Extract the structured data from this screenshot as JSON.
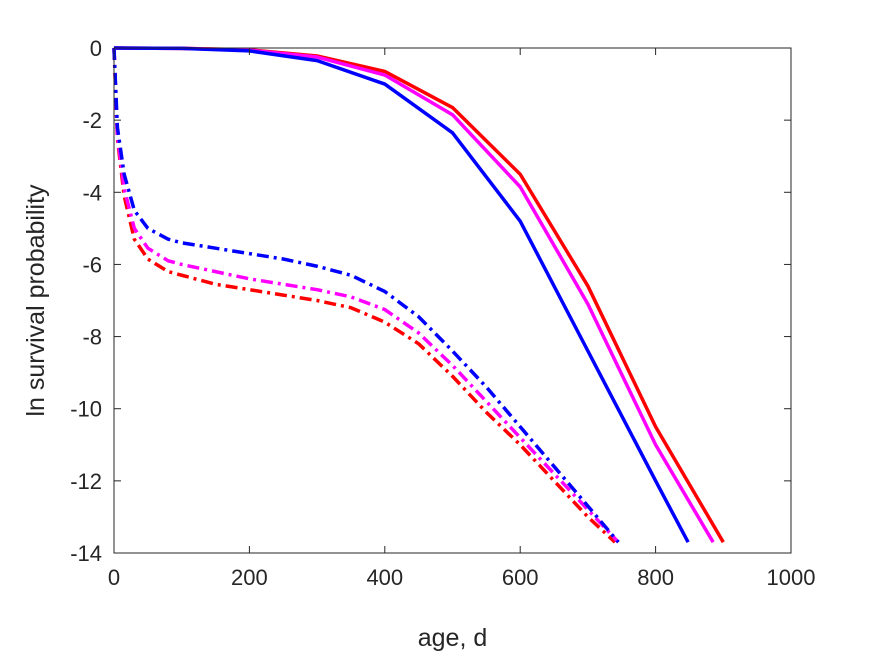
{
  "chart_data": {
    "type": "line",
    "xlabel": "age, d",
    "ylabel": "ln survival probability",
    "xlim": [
      0,
      1000
    ],
    "ylim": [
      -14,
      0
    ],
    "xticks": [
      0,
      200,
      400,
      600,
      800,
      1000
    ],
    "yticks": [
      0,
      -2,
      -4,
      -6,
      -8,
      -10,
      -12,
      -14
    ],
    "xtick_labels": [
      "0",
      "200",
      "400",
      "600",
      "800",
      "1000"
    ],
    "ytick_labels": [
      "0",
      "-2",
      "-4",
      "-6",
      "-8",
      "-10",
      "-12",
      "-14"
    ],
    "grid": false,
    "legend": "none",
    "series": [
      {
        "color": "#ff0000",
        "linestyle": "solid",
        "x": [
          0,
          100,
          200,
          300,
          400,
          500,
          600,
          700,
          800,
          900
        ],
        "y": [
          0,
          -0.01,
          -0.05,
          -0.22,
          -0.65,
          -1.65,
          -3.5,
          -6.6,
          -10.5,
          -13.7
        ]
      },
      {
        "color": "#ff00ff",
        "linestyle": "solid",
        "x": [
          0,
          100,
          200,
          300,
          400,
          500,
          600,
          700,
          800,
          885
        ],
        "y": [
          0,
          -0.01,
          -0.06,
          -0.25,
          -0.75,
          -1.85,
          -3.85,
          -7.1,
          -11.0,
          -13.7
        ]
      },
      {
        "color": "#0000ff",
        "linestyle": "solid",
        "x": [
          0,
          100,
          200,
          300,
          400,
          500,
          600,
          700,
          800,
          848
        ],
        "y": [
          0,
          -0.01,
          -0.08,
          -0.35,
          -1.0,
          -2.35,
          -4.8,
          -8.4,
          -12.0,
          -13.7
        ]
      },
      {
        "color": "#ff0000",
        "linestyle": "dashdot",
        "x": [
          0,
          5,
          15,
          30,
          50,
          80,
          100,
          150,
          200,
          250,
          300,
          350,
          400,
          450,
          500,
          550,
          600,
          650,
          700,
          740
        ],
        "y": [
          0,
          -2.5,
          -4.1,
          -5.3,
          -5.85,
          -6.2,
          -6.3,
          -6.55,
          -6.7,
          -6.85,
          -7.0,
          -7.2,
          -7.6,
          -8.2,
          -9.1,
          -10.1,
          -11.0,
          -12.0,
          -13.0,
          -13.7
        ]
      },
      {
        "color": "#ff00ff",
        "linestyle": "dashdot",
        "x": [
          0,
          5,
          15,
          30,
          50,
          80,
          100,
          150,
          200,
          250,
          300,
          350,
          400,
          450,
          500,
          550,
          600,
          650,
          700,
          745
        ],
        "y": [
          0,
          -2.4,
          -3.9,
          -5.0,
          -5.55,
          -5.9,
          -6.0,
          -6.2,
          -6.4,
          -6.55,
          -6.7,
          -6.9,
          -7.25,
          -7.9,
          -8.8,
          -9.8,
          -10.8,
          -11.8,
          -12.8,
          -13.7
        ]
      },
      {
        "color": "#0000ff",
        "linestyle": "dashdot",
        "x": [
          0,
          5,
          15,
          30,
          50,
          80,
          100,
          150,
          200,
          250,
          300,
          350,
          400,
          450,
          500,
          550,
          600,
          650,
          700,
          745
        ],
        "y": [
          0,
          -2.2,
          -3.5,
          -4.5,
          -5.0,
          -5.3,
          -5.4,
          -5.55,
          -5.7,
          -5.85,
          -6.05,
          -6.3,
          -6.75,
          -7.45,
          -8.4,
          -9.4,
          -10.5,
          -11.6,
          -12.7,
          -13.7
        ]
      }
    ]
  }
}
